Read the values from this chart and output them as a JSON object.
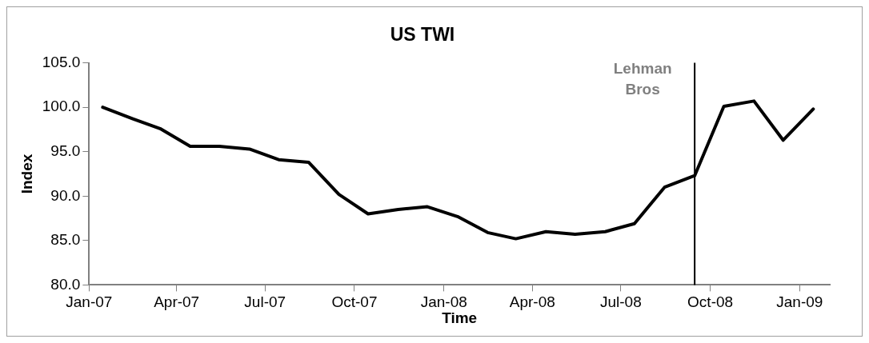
{
  "chart_data": {
    "type": "line",
    "title": "US TWI",
    "xlabel": "Time",
    "ylabel": "Index",
    "x": [
      "2007-01-15",
      "2007-02-15",
      "2007-03-15",
      "2007-04-15",
      "2007-05-15",
      "2007-06-15",
      "2007-07-15",
      "2007-08-15",
      "2007-09-15",
      "2007-10-15",
      "2007-11-15",
      "2007-12-15",
      "2008-01-15",
      "2008-02-15",
      "2008-03-15",
      "2008-04-15",
      "2008-05-15",
      "2008-06-15",
      "2008-07-15",
      "2008-08-15",
      "2008-09-15",
      "2008-10-15",
      "2008-11-15",
      "2008-12-15",
      "2009-01-15"
    ],
    "series": [
      {
        "color": "#000000",
        "values": [
          100.0,
          98.7,
          97.6,
          95.6,
          95.6,
          95.3,
          94.1,
          93.8,
          90.2,
          88.0,
          88.5,
          88.8,
          87.7,
          85.9,
          85.2,
          86.0,
          85.7,
          86.0,
          86.9,
          91.0,
          92.3,
          100.1,
          100.7,
          96.3,
          99.8
        ]
      }
    ],
    "xlim": [
      "2007-01-01",
      "2009-02-01"
    ],
    "xticks": [
      {
        "value": "2007-01-01",
        "label": "Jan-07"
      },
      {
        "value": "2007-04-01",
        "label": "Apr-07"
      },
      {
        "value": "2007-07-01",
        "label": "Jul-07"
      },
      {
        "value": "2007-10-01",
        "label": "Oct-07"
      },
      {
        "value": "2008-01-01",
        "label": "Jan-08"
      },
      {
        "value": "2008-04-01",
        "label": "Apr-08"
      },
      {
        "value": "2008-07-01",
        "label": "Jul-08"
      },
      {
        "value": "2008-10-01",
        "label": "Oct-08"
      },
      {
        "value": "2009-01-01",
        "label": "Jan-09"
      }
    ],
    "ylim": [
      80,
      105
    ],
    "yticks": [
      {
        "value": 80,
        "label": "80.0"
      },
      {
        "value": 85,
        "label": "85.0"
      },
      {
        "value": 90,
        "label": "90.0"
      },
      {
        "value": 95,
        "label": "95.0"
      },
      {
        "value": 100,
        "label": "100.0"
      },
      {
        "value": 105,
        "label": "105.0"
      }
    ],
    "ref_lines": [
      {
        "axis": "x",
        "value": "2008-09-15",
        "label": "Lehman Bros",
        "color": "#000000"
      }
    ],
    "grid": false,
    "legend": false,
    "marker": "none",
    "line_style": "solid"
  }
}
